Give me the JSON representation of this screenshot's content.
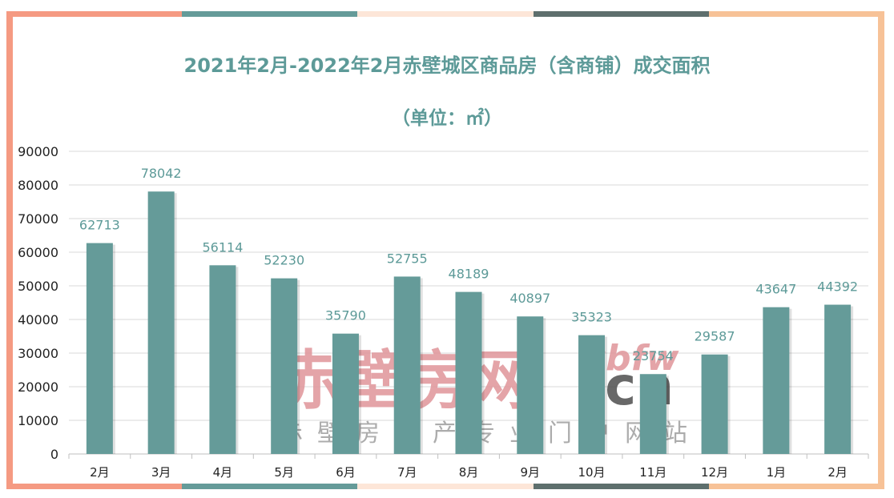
{
  "chart_data": {
    "type": "bar",
    "title": "2021年2月-2022年2月赤壁城区商品房（含商铺）成交面积",
    "subtitle": "（单位：㎡）",
    "categories": [
      "2月",
      "3月",
      "4月",
      "5月",
      "6月",
      "7月",
      "8月",
      "9月",
      "10月",
      "11月",
      "12月",
      "1月",
      "2月"
    ],
    "values": [
      62713,
      78042,
      56114,
      52230,
      35790,
      52755,
      48189,
      40897,
      35323,
      23754,
      29587,
      43647,
      44392
    ],
    "ylim": [
      0,
      90000
    ],
    "yticks": [
      "0",
      "10000",
      "20000",
      "30000",
      "40000",
      "50000",
      "60000",
      "70000",
      "80000",
      "90000"
    ],
    "grid": true,
    "legend": "none",
    "bar_color": "#659b99"
  },
  "watermark": {
    "main": "赤壁房网",
    "latin": "cbfw",
    "domain": ".cn",
    "tagline": "赤壁房地产专业门户网站"
  },
  "frame_colors": [
    "#f59a82",
    "#659b99",
    "#fde6d8",
    "#5e6f6d",
    "#f7c297"
  ]
}
